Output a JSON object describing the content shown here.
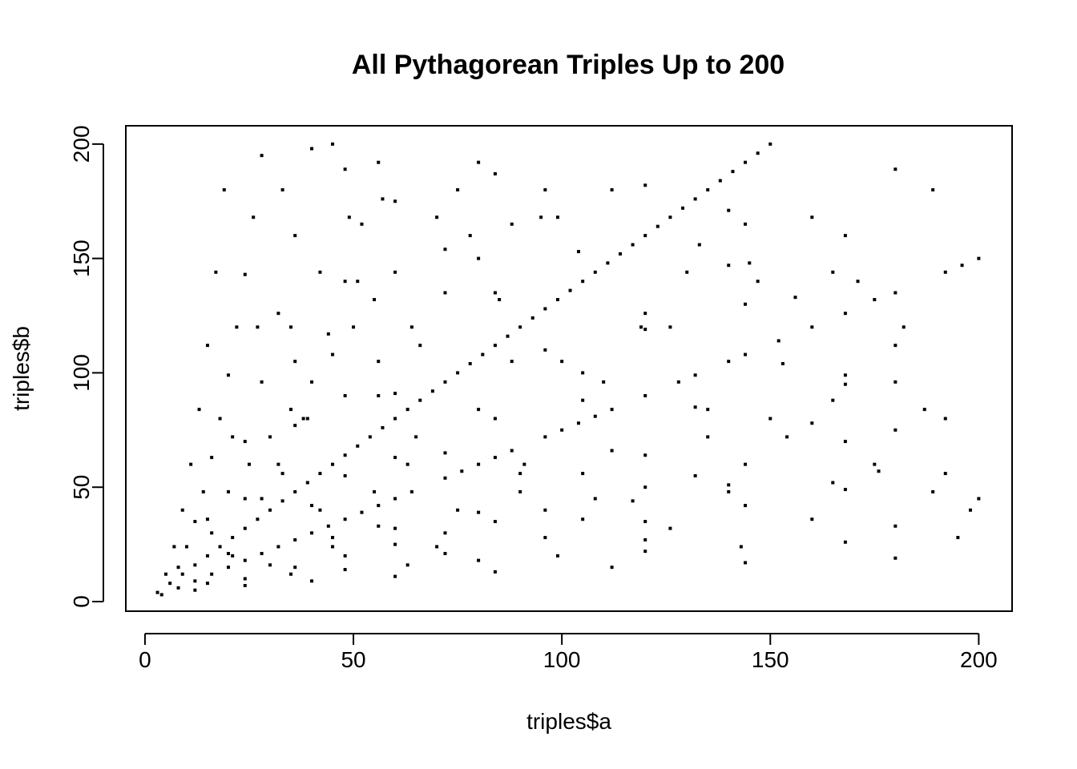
{
  "chart_data": {
    "type": "scatter",
    "title": "All Pythagorean Triples Up to 200",
    "xlabel": "triples$a",
    "ylabel": "triples$b",
    "xlim": [
      -4.6,
      208
    ],
    "ylim": [
      -4.2,
      208
    ],
    "x_ticks": [
      0,
      50,
      100,
      150,
      200
    ],
    "y_ticks": [
      0,
      50,
      100,
      150,
      200
    ],
    "grid": false,
    "legend": "none",
    "point_color": "#000000",
    "points": [
      [
        3,
        4
      ],
      [
        4,
        3
      ],
      [
        5,
        12
      ],
      [
        6,
        8
      ],
      [
        7,
        24
      ],
      [
        8,
        6
      ],
      [
        8,
        15
      ],
      [
        9,
        12
      ],
      [
        9,
        40
      ],
      [
        10,
        24
      ],
      [
        11,
        60
      ],
      [
        12,
        5
      ],
      [
        12,
        9
      ],
      [
        12,
        16
      ],
      [
        12,
        35
      ],
      [
        13,
        84
      ],
      [
        14,
        48
      ],
      [
        15,
        8
      ],
      [
        15,
        20
      ],
      [
        15,
        36
      ],
      [
        15,
        112
      ],
      [
        16,
        12
      ],
      [
        16,
        30
      ],
      [
        16,
        63
      ],
      [
        17,
        144
      ],
      [
        18,
        24
      ],
      [
        18,
        80
      ],
      [
        19,
        180
      ],
      [
        20,
        15
      ],
      [
        20,
        21
      ],
      [
        20,
        48
      ],
      [
        20,
        99
      ],
      [
        21,
        20
      ],
      [
        21,
        28
      ],
      [
        21,
        72
      ],
      [
        22,
        120
      ],
      [
        24,
        7
      ],
      [
        24,
        10
      ],
      [
        24,
        18
      ],
      [
        24,
        32
      ],
      [
        24,
        45
      ],
      [
        24,
        70
      ],
      [
        24,
        143
      ],
      [
        25,
        60
      ],
      [
        26,
        168
      ],
      [
        27,
        36
      ],
      [
        27,
        120
      ],
      [
        28,
        21
      ],
      [
        28,
        45
      ],
      [
        28,
        96
      ],
      [
        28,
        195
      ],
      [
        30,
        16
      ],
      [
        30,
        40
      ],
      [
        30,
        72
      ],
      [
        32,
        24
      ],
      [
        32,
        60
      ],
      [
        32,
        126
      ],
      [
        33,
        44
      ],
      [
        33,
        56
      ],
      [
        33,
        180
      ],
      [
        35,
        12
      ],
      [
        35,
        84
      ],
      [
        35,
        120
      ],
      [
        36,
        15
      ],
      [
        36,
        27
      ],
      [
        36,
        48
      ],
      [
        36,
        77
      ],
      [
        36,
        105
      ],
      [
        36,
        160
      ],
      [
        38,
        80
      ],
      [
        39,
        52
      ],
      [
        39,
        80
      ],
      [
        40,
        9
      ],
      [
        40,
        30
      ],
      [
        40,
        42
      ],
      [
        40,
        96
      ],
      [
        40,
        198
      ],
      [
        42,
        40
      ],
      [
        42,
        56
      ],
      [
        42,
        144
      ],
      [
        44,
        33
      ],
      [
        44,
        117
      ],
      [
        45,
        24
      ],
      [
        45,
        28
      ],
      [
        45,
        60
      ],
      [
        45,
        108
      ],
      [
        45,
        200
      ],
      [
        48,
        14
      ],
      [
        48,
        20
      ],
      [
        48,
        36
      ],
      [
        48,
        55
      ],
      [
        48,
        64
      ],
      [
        48,
        90
      ],
      [
        48,
        140
      ],
      [
        48,
        189
      ],
      [
        49,
        168
      ],
      [
        50,
        120
      ],
      [
        51,
        68
      ],
      [
        51,
        140
      ],
      [
        52,
        39
      ],
      [
        52,
        165
      ],
      [
        54,
        72
      ],
      [
        55,
        48
      ],
      [
        55,
        132
      ],
      [
        56,
        33
      ],
      [
        56,
        42
      ],
      [
        56,
        90
      ],
      [
        56,
        105
      ],
      [
        56,
        192
      ],
      [
        57,
        76
      ],
      [
        57,
        176
      ],
      [
        60,
        11
      ],
      [
        60,
        25
      ],
      [
        60,
        32
      ],
      [
        60,
        45
      ],
      [
        60,
        63
      ],
      [
        60,
        80
      ],
      [
        60,
        91
      ],
      [
        60,
        144
      ],
      [
        60,
        175
      ],
      [
        63,
        16
      ],
      [
        63,
        60
      ],
      [
        63,
        84
      ],
      [
        64,
        48
      ],
      [
        64,
        120
      ],
      [
        65,
        72
      ],
      [
        66,
        88
      ],
      [
        66,
        112
      ],
      [
        69,
        92
      ],
      [
        70,
        24
      ],
      [
        70,
        168
      ],
      [
        72,
        21
      ],
      [
        72,
        30
      ],
      [
        72,
        54
      ],
      [
        72,
        65
      ],
      [
        72,
        96
      ],
      [
        72,
        135
      ],
      [
        72,
        154
      ],
      [
        75,
        40
      ],
      [
        75,
        100
      ],
      [
        75,
        180
      ],
      [
        76,
        57
      ],
      [
        78,
        104
      ],
      [
        78,
        160
      ],
      [
        80,
        18
      ],
      [
        80,
        39
      ],
      [
        80,
        60
      ],
      [
        80,
        84
      ],
      [
        80,
        150
      ],
      [
        80,
        192
      ],
      [
        81,
        108
      ],
      [
        84,
        13
      ],
      [
        84,
        35
      ],
      [
        84,
        63
      ],
      [
        84,
        80
      ],
      [
        84,
        112
      ],
      [
        84,
        135
      ],
      [
        84,
        187
      ],
      [
        85,
        132
      ],
      [
        87,
        116
      ],
      [
        88,
        66
      ],
      [
        88,
        105
      ],
      [
        88,
        165
      ],
      [
        90,
        48
      ],
      [
        90,
        56
      ],
      [
        90,
        120
      ],
      [
        91,
        60
      ],
      [
        93,
        124
      ],
      [
        95,
        168
      ],
      [
        96,
        28
      ],
      [
        96,
        40
      ],
      [
        96,
        72
      ],
      [
        96,
        110
      ],
      [
        96,
        128
      ],
      [
        96,
        180
      ],
      [
        99,
        20
      ],
      [
        99,
        132
      ],
      [
        99,
        168
      ],
      [
        100,
        75
      ],
      [
        100,
        105
      ],
      [
        102,
        136
      ],
      [
        104,
        78
      ],
      [
        104,
        153
      ],
      [
        105,
        36
      ],
      [
        105,
        56
      ],
      [
        105,
        88
      ],
      [
        105,
        100
      ],
      [
        105,
        140
      ],
      [
        108,
        45
      ],
      [
        108,
        81
      ],
      [
        108,
        144
      ],
      [
        110,
        96
      ],
      [
        111,
        148
      ],
      [
        112,
        15
      ],
      [
        112,
        66
      ],
      [
        112,
        84
      ],
      [
        112,
        180
      ],
      [
        114,
        152
      ],
      [
        117,
        44
      ],
      [
        117,
        156
      ],
      [
        119,
        120
      ],
      [
        120,
        22
      ],
      [
        120,
        27
      ],
      [
        120,
        35
      ],
      [
        120,
        50
      ],
      [
        120,
        64
      ],
      [
        120,
        90
      ],
      [
        120,
        119
      ],
      [
        120,
        126
      ],
      [
        120,
        160
      ],
      [
        120,
        182
      ],
      [
        123,
        164
      ],
      [
        126,
        32
      ],
      [
        126,
        120
      ],
      [
        126,
        168
      ],
      [
        128,
        96
      ],
      [
        129,
        172
      ],
      [
        130,
        144
      ],
      [
        132,
        55
      ],
      [
        132,
        85
      ],
      [
        132,
        99
      ],
      [
        132,
        176
      ],
      [
        133,
        156
      ],
      [
        135,
        72
      ],
      [
        135,
        84
      ],
      [
        135,
        180
      ],
      [
        138,
        184
      ],
      [
        140,
        48
      ],
      [
        140,
        51
      ],
      [
        140,
        105
      ],
      [
        140,
        147
      ],
      [
        140,
        171
      ],
      [
        141,
        188
      ],
      [
        143,
        24
      ],
      [
        144,
        17
      ],
      [
        144,
        42
      ],
      [
        144,
        60
      ],
      [
        144,
        108
      ],
      [
        144,
        130
      ],
      [
        144,
        165
      ],
      [
        144,
        192
      ],
      [
        145,
        148
      ],
      [
        147,
        140
      ],
      [
        147,
        196
      ],
      [
        150,
        80
      ],
      [
        150,
        200
      ],
      [
        152,
        114
      ],
      [
        153,
        104
      ],
      [
        154,
        72
      ],
      [
        156,
        133
      ],
      [
        160,
        36
      ],
      [
        160,
        78
      ],
      [
        160,
        120
      ],
      [
        160,
        168
      ],
      [
        165,
        52
      ],
      [
        165,
        88
      ],
      [
        165,
        144
      ],
      [
        168,
        26
      ],
      [
        168,
        49
      ],
      [
        168,
        70
      ],
      [
        168,
        95
      ],
      [
        168,
        99
      ],
      [
        168,
        126
      ],
      [
        168,
        160
      ],
      [
        171,
        140
      ],
      [
        175,
        60
      ],
      [
        175,
        132
      ],
      [
        176,
        57
      ],
      [
        180,
        19
      ],
      [
        180,
        33
      ],
      [
        180,
        75
      ],
      [
        180,
        96
      ],
      [
        180,
        112
      ],
      [
        180,
        135
      ],
      [
        180,
        189
      ],
      [
        182,
        120
      ],
      [
        187,
        84
      ],
      [
        189,
        48
      ],
      [
        189,
        180
      ],
      [
        192,
        56
      ],
      [
        192,
        80
      ],
      [
        192,
        144
      ],
      [
        195,
        28
      ],
      [
        196,
        147
      ],
      [
        198,
        40
      ],
      [
        200,
        45
      ],
      [
        200,
        150
      ]
    ]
  }
}
